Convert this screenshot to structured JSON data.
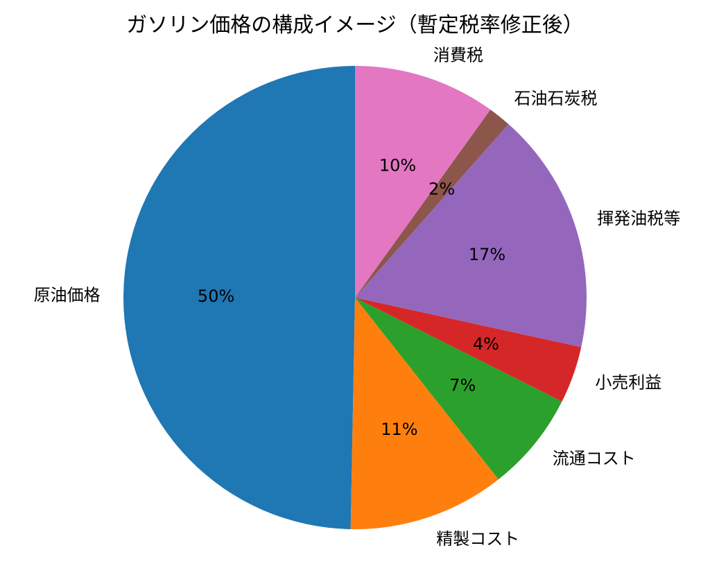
{
  "chart_data": {
    "type": "pie",
    "title": "ガソリン価格の構成イメージ（暫定税率修正後）",
    "slices": [
      {
        "label": "原油価格",
        "value": 50,
        "pct_label": "50%",
        "color": "#1f77b4"
      },
      {
        "label": "精製コスト",
        "value": 11,
        "pct_label": "11%",
        "color": "#ff7f0e"
      },
      {
        "label": "流通コスト",
        "value": 7,
        "pct_label": "7%",
        "color": "#2ca02c"
      },
      {
        "label": "小売利益",
        "value": 4,
        "pct_label": "4%",
        "color": "#d62728"
      },
      {
        "label": "揮発油税等",
        "value": 17,
        "pct_label": "17%",
        "color": "#9467bd"
      },
      {
        "label": "石油石炭税",
        "value": 1.6,
        "pct_label": "2%",
        "color": "#8c564b"
      },
      {
        "label": "消費税",
        "value": 10,
        "pct_label": "10%",
        "color": "#e377c2"
      }
    ],
    "start_angle_deg": 90,
    "direction": "counterclockwise"
  }
}
